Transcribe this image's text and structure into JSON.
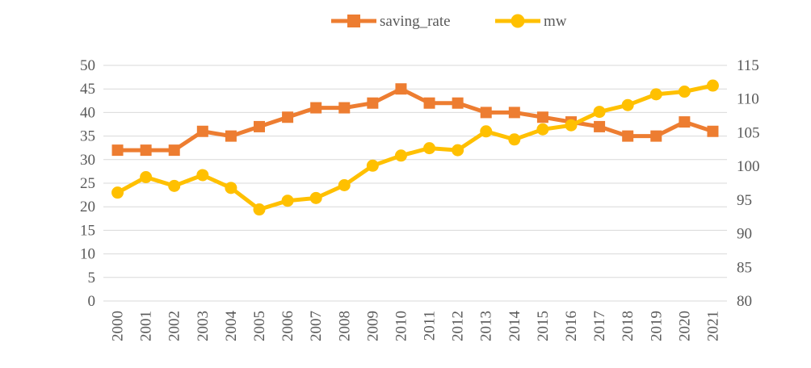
{
  "chart_data": {
    "type": "line",
    "categories": [
      "2000",
      "2001",
      "2002",
      "2003",
      "2004",
      "2005",
      "2006",
      "2007",
      "2008",
      "2009",
      "2010",
      "2011",
      "2012",
      "2013",
      "2014",
      "2015",
      "2016",
      "2017",
      "2018",
      "2019",
      "2020",
      "2021"
    ],
    "series": [
      {
        "name": "saving_rate",
        "axis": "left",
        "color": "#ED7D31",
        "marker": "square",
        "values": [
          32,
          32,
          32,
          36,
          35,
          37,
          39,
          41,
          41,
          42,
          45,
          42,
          42,
          40,
          40,
          39,
          38,
          37,
          35,
          35,
          38,
          36
        ]
      },
      {
        "name": "mw",
        "axis": "right",
        "color": "#FFC000",
        "marker": "circle",
        "values": [
          96.1,
          98.4,
          97.1,
          98.7,
          96.8,
          93.6,
          94.9,
          95.3,
          97.2,
          100.1,
          101.6,
          102.7,
          102.4,
          105.2,
          104.0,
          105.5,
          106.1,
          108.1,
          109.1,
          110.7,
          111.1,
          112.0
        ]
      }
    ],
    "y_left": {
      "ylim": [
        0,
        50
      ],
      "ticks": [
        "0",
        "5",
        "10",
        "15",
        "20",
        "25",
        "30",
        "35",
        "40",
        "45",
        "50"
      ]
    },
    "y_right": {
      "ylim": [
        80,
        115
      ],
      "ticks": [
        "80",
        "85",
        "90",
        "95",
        "100",
        "105",
        "110",
        "115"
      ]
    },
    "grid": true,
    "legend": "top-center",
    "title": "",
    "xlabel": "",
    "ylabel": ""
  }
}
